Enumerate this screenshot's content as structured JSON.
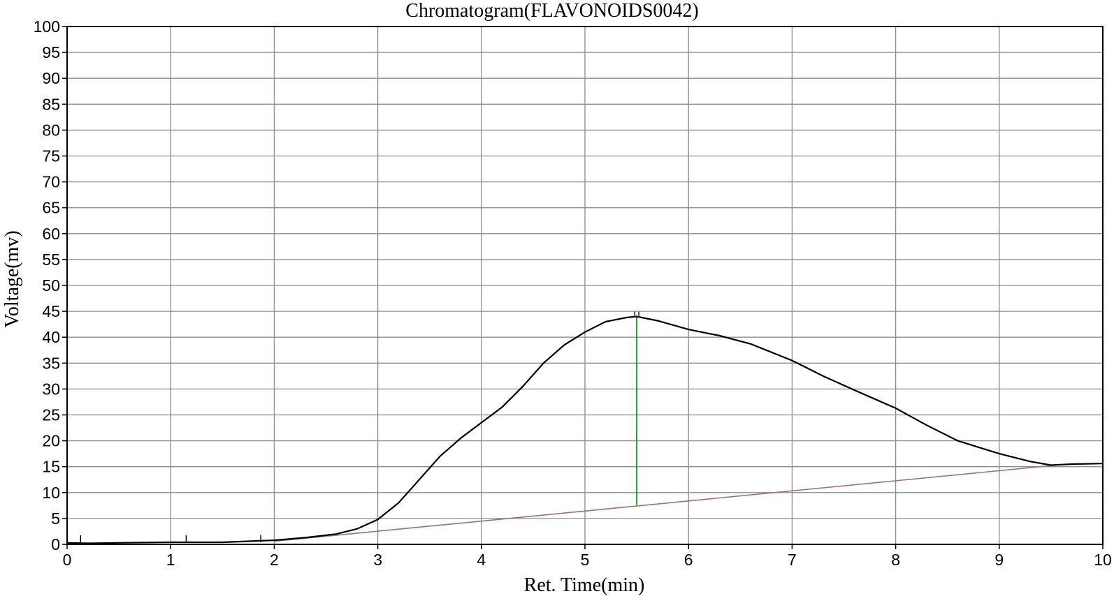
{
  "chart_data": {
    "type": "line",
    "title": "Chromatogram(FLAVONOIDS0042)",
    "xlabel": "Ret. Time(min)",
    "ylabel": "Voltage(mv)",
    "xlim": [
      0,
      10
    ],
    "ylim": [
      0,
      100
    ],
    "x_ticks": [
      "0",
      "1",
      "2",
      "3",
      "4",
      "5",
      "6",
      "7",
      "8",
      "9",
      "10"
    ],
    "y_ticks": [
      "0",
      "5",
      "10",
      "15",
      "20",
      "25",
      "30",
      "35",
      "40",
      "45",
      "50",
      "55",
      "60",
      "65",
      "70",
      "75",
      "80",
      "85",
      "90",
      "95",
      "100"
    ],
    "grid": true,
    "series": [
      {
        "color": "#000000",
        "x": [
          0.0,
          0.2,
          0.5,
          1.0,
          1.5,
          2.0,
          2.3,
          2.6,
          2.8,
          3.0,
          3.2,
          3.4,
          3.6,
          3.8,
          4.0,
          4.2,
          4.4,
          4.6,
          4.8,
          5.0,
          5.2,
          5.4,
          5.5,
          5.7,
          6.0,
          6.3,
          6.6,
          7.0,
          7.3,
          7.6,
          8.0,
          8.3,
          8.6,
          9.0,
          9.3,
          9.5,
          9.7,
          10.0
        ],
        "y": [
          0.3,
          0.2,
          0.3,
          0.4,
          0.4,
          0.8,
          1.3,
          2.0,
          3.0,
          4.8,
          8.0,
          12.5,
          17.0,
          20.5,
          23.5,
          26.5,
          30.5,
          35.0,
          38.5,
          41.0,
          43.0,
          43.8,
          44.0,
          43.2,
          41.5,
          40.3,
          38.7,
          35.5,
          32.5,
          29.8,
          26.3,
          23.0,
          20.0,
          17.5,
          16.0,
          15.3,
          15.5,
          15.6
        ]
      }
    ],
    "baseline": {
      "color": "#9e6f73",
      "x": [
        2.0,
        9.55
      ],
      "y": [
        0.6,
        15.3
      ]
    },
    "peak": {
      "x": 5.5,
      "y": 44.0,
      "drop_color": "#2e8b2e",
      "baseline_y": 7.6,
      "marker_color": "#3050c0"
    },
    "small_marks_x": [
      0.13,
      1.15,
      1.87
    ]
  }
}
